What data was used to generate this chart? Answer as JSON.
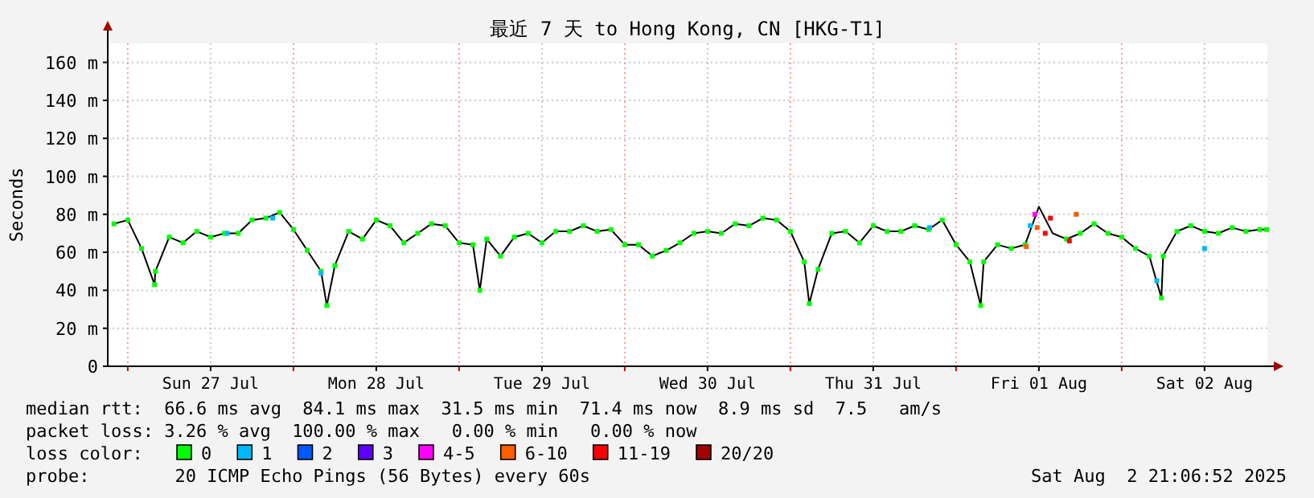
{
  "chart_data": {
    "type": "line",
    "title": "最近 7 天 to Hong Kong, CN [HKG-T1]",
    "ylabel": "Seconds",
    "xlim": [
      "2025-07-26T21:06",
      "2025-08-02T21:06"
    ],
    "xticks": [
      {
        "value": "2025-07-27T00:00",
        "label": null
      },
      {
        "value": "2025-07-27T12:00",
        "label": "Sun 27 Jul"
      },
      {
        "value": "2025-07-28T00:00",
        "label": null
      },
      {
        "value": "2025-07-28T12:00",
        "label": "Mon 28 Jul"
      },
      {
        "value": "2025-07-29T00:00",
        "label": null
      },
      {
        "value": "2025-07-29T12:00",
        "label": "Tue 29 Jul"
      },
      {
        "value": "2025-07-30T00:00",
        "label": null
      },
      {
        "value": "2025-07-30T12:00",
        "label": "Wed 30 Jul"
      },
      {
        "value": "2025-07-31T00:00",
        "label": null
      },
      {
        "value": "2025-07-31T12:00",
        "label": "Thu 31 Jul"
      },
      {
        "value": "2025-08-01T00:00",
        "label": null
      },
      {
        "value": "2025-08-01T12:00",
        "label": "Fri 01 Aug"
      },
      {
        "value": "2025-08-02T00:00",
        "label": null
      },
      {
        "value": "2025-08-02T12:00",
        "label": "Sat 02 Aug"
      }
    ],
    "ylim": [
      0,
      170
    ],
    "yticks": [
      0,
      {
        "value": 20,
        "label": "20 m"
      },
      {
        "value": 40,
        "label": "40 m"
      },
      {
        "value": 60,
        "label": "60 m"
      },
      {
        "value": 80,
        "label": "80 m"
      },
      {
        "value": 100,
        "label": "100 m"
      },
      {
        "value": 120,
        "label": "120 m"
      },
      {
        "value": 140,
        "label": "140 m"
      },
      {
        "value": 160,
        "label": "160 m"
      }
    ],
    "grid": true,
    "legend": "bottom",
    "legend_title": "loss color:",
    "x": [
      "2025-07-26T22:00",
      "2025-07-27T00:00",
      "2025-07-27T02:00",
      "2025-07-27T03:53",
      "2025-07-27T04:00",
      "2025-07-27T06:00",
      "2025-07-27T08:00",
      "2025-07-27T10:00",
      "2025-07-27T12:00",
      "2025-07-27T14:00",
      "2025-07-27T16:00",
      "2025-07-27T18:00",
      "2025-07-27T20:00",
      "2025-07-27T22:00",
      "2025-07-28T00:00",
      "2025-07-28T02:00",
      "2025-07-28T04:00",
      "2025-07-28T04:50",
      "2025-07-28T06:00",
      "2025-07-28T08:00",
      "2025-07-28T10:00",
      "2025-07-28T12:00",
      "2025-07-28T14:00",
      "2025-07-28T16:00",
      "2025-07-28T18:00",
      "2025-07-28T20:00",
      "2025-07-28T22:00",
      "2025-07-29T00:00",
      "2025-07-29T02:00",
      "2025-07-29T03:00",
      "2025-07-29T04:00",
      "2025-07-29T06:00",
      "2025-07-29T08:00",
      "2025-07-29T10:00",
      "2025-07-29T12:00",
      "2025-07-29T14:00",
      "2025-07-29T16:00",
      "2025-07-29T18:00",
      "2025-07-29T20:00",
      "2025-07-29T22:00",
      "2025-07-30T00:00",
      "2025-07-30T02:00",
      "2025-07-30T04:00",
      "2025-07-30T06:00",
      "2025-07-30T08:00",
      "2025-07-30T10:00",
      "2025-07-30T12:00",
      "2025-07-30T14:00",
      "2025-07-30T16:00",
      "2025-07-30T18:00",
      "2025-07-30T20:00",
      "2025-07-30T22:00",
      "2025-07-31T00:00",
      "2025-07-31T02:00",
      "2025-07-31T02:44",
      "2025-07-31T04:00",
      "2025-07-31T06:00",
      "2025-07-31T08:00",
      "2025-07-31T10:00",
      "2025-07-31T12:00",
      "2025-07-31T14:00",
      "2025-07-31T16:00",
      "2025-07-31T18:00",
      "2025-07-31T20:00",
      "2025-07-31T22:00",
      "2025-08-01T00:00",
      "2025-08-01T02:00",
      "2025-08-01T03:34",
      "2025-08-01T04:00",
      "2025-08-01T06:00",
      "2025-08-01T08:00",
      "2025-08-01T10:00",
      "2025-08-01T12:00",
      "2025-08-01T14:00",
      "2025-08-01T16:00",
      "2025-08-01T18:00",
      "2025-08-01T20:00",
      "2025-08-01T22:00",
      "2025-08-02T00:00",
      "2025-08-02T02:00",
      "2025-08-02T04:00",
      "2025-08-02T05:45",
      "2025-08-02T06:00",
      "2025-08-02T08:00",
      "2025-08-02T10:00",
      "2025-08-02T12:00",
      "2025-08-02T14:00",
      "2025-08-02T16:00",
      "2025-08-02T18:00",
      "2025-08-02T20:00",
      "2025-08-02T21:00"
    ],
    "series": [
      {
        "color": "#000000",
        "values": [
          75,
          77,
          62,
          43,
          50,
          68,
          65,
          71,
          68,
          70,
          70,
          77,
          78,
          81,
          72,
          61,
          50,
          32,
          53,
          71,
          67,
          77,
          74,
          65,
          70,
          75,
          74,
          65,
          64,
          40,
          67,
          58,
          68,
          70,
          65,
          71,
          71,
          74,
          71,
          72,
          64,
          64,
          58,
          61,
          65,
          70,
          71,
          70,
          75,
          74,
          78,
          77,
          71,
          55,
          33,
          51,
          70,
          71,
          65,
          74,
          71,
          71,
          74,
          72,
          77,
          64,
          55,
          32,
          55,
          64,
          62,
          64,
          84,
          70,
          67,
          70,
          75,
          70,
          68,
          62,
          58,
          36,
          58,
          71,
          74,
          71,
          70,
          73,
          71,
          72,
          72
        ]
      },
      {
        "type": "scatter",
        "name": "0",
        "color": "#00ff00",
        "values": [
          75,
          77,
          62,
          43,
          50,
          68,
          65,
          71,
          68,
          70,
          70,
          77,
          78,
          81,
          72,
          61,
          50,
          32,
          53,
          71,
          67,
          77,
          74,
          65,
          70,
          75,
          74,
          65,
          64,
          40,
          67,
          58,
          68,
          70,
          65,
          71,
          71,
          74,
          71,
          72,
          64,
          64,
          58,
          61,
          65,
          70,
          71,
          70,
          75,
          74,
          78,
          77,
          71,
          55,
          33,
          51,
          70,
          71,
          65,
          74,
          71,
          71,
          74,
          72,
          77,
          64,
          55,
          32,
          55,
          64,
          62,
          64,
          null,
          null,
          67,
          70,
          75,
          70,
          68,
          62,
          58,
          36,
          58,
          71,
          74,
          71,
          70,
          73,
          71,
          72,
          72
        ]
      },
      {
        "type": "scatter",
        "name": "1",
        "color": "#00b8ff",
        "x": [
          "2025-07-27T14:25",
          "2025-07-27T21:00",
          "2025-07-28T04:00",
          "2025-07-31T20:10",
          "2025-08-01T10:45",
          "2025-08-02T05:05",
          "2025-08-02T12:00"
        ],
        "values": [
          70,
          78,
          49,
          73,
          74,
          45,
          62
        ]
      },
      {
        "type": "scatter",
        "name": "2",
        "color": "#0059ff",
        "values": [
          null,
          null,
          null,
          null,
          null,
          null,
          null,
          null,
          null,
          null,
          null,
          null,
          null,
          null,
          null,
          null,
          null,
          null,
          null,
          null,
          null,
          null,
          null,
          null,
          null,
          null,
          null,
          null,
          null,
          null,
          null,
          null,
          null,
          null,
          null,
          null,
          null,
          null,
          null,
          null,
          null,
          null,
          null,
          null,
          null,
          null,
          null,
          null,
          null,
          null,
          null,
          null,
          null,
          null,
          null,
          null,
          null,
          null,
          null,
          null,
          null,
          null,
          null,
          null,
          null,
          null,
          null,
          null,
          null,
          null,
          null,
          null,
          null,
          null,
          null,
          null,
          null,
          null,
          null,
          null,
          null,
          null,
          null,
          null,
          null,
          null,
          null,
          null,
          null,
          null,
          null
        ]
      },
      {
        "type": "scatter",
        "name": "3",
        "color": "#5e00ff",
        "values": [
          null,
          null,
          null,
          null,
          null,
          null,
          null,
          null,
          null,
          null,
          null,
          null,
          null,
          null,
          null,
          null,
          null,
          null,
          null,
          null,
          null,
          null,
          null,
          null,
          null,
          null,
          null,
          null,
          null,
          null,
          null,
          null,
          null,
          null,
          null,
          null,
          null,
          null,
          null,
          null,
          null,
          null,
          null,
          null,
          null,
          null,
          null,
          null,
          null,
          null,
          null,
          null,
          null,
          null,
          null,
          null,
          null,
          null,
          null,
          null,
          null,
          null,
          null,
          null,
          null,
          null,
          null,
          null,
          null,
          null,
          null,
          null,
          null,
          null,
          null,
          null,
          null,
          null,
          null,
          null,
          null,
          null,
          null,
          null,
          null,
          null,
          null,
          null,
          null,
          null,
          null
        ]
      },
      {
        "type": "scatter",
        "name": "4-5",
        "color": "#ff00ff",
        "x": [
          "2025-08-01T11:25"
        ],
        "values": [
          80
        ]
      },
      {
        "type": "scatter",
        "name": "6-10",
        "color": "#ff5e00",
        "x": [
          "2025-08-01T10:10",
          "2025-08-01T11:45",
          "2025-08-01T17:25"
        ],
        "values": [
          63,
          73,
          80
        ]
      },
      {
        "type": "scatter",
        "name": "11-19",
        "color": "#ff0000",
        "x": [
          "2025-08-01T12:55",
          "2025-08-01T13:40",
          "2025-08-01T16:25"
        ],
        "values": [
          70,
          78,
          66
        ]
      },
      {
        "type": "scatter",
        "name": "20/20",
        "color": "#a10000",
        "values": [
          null,
          null,
          null,
          null,
          null,
          null,
          null,
          null,
          null,
          null,
          null,
          null,
          null,
          null,
          null,
          null,
          null,
          null,
          null,
          null,
          null,
          null,
          null,
          null,
          null,
          null,
          null,
          null,
          null,
          null,
          null,
          null,
          null,
          null,
          null,
          null,
          null,
          null,
          null,
          null,
          null,
          null,
          null,
          null,
          null,
          null,
          null,
          null,
          null,
          null,
          null,
          null,
          null,
          null,
          null,
          null,
          null,
          null,
          null,
          null,
          null,
          null,
          null,
          null,
          null,
          null,
          null,
          null,
          null,
          null,
          null,
          null,
          null,
          null,
          null,
          null,
          null,
          null,
          null,
          null,
          null,
          null,
          null,
          null,
          null,
          null,
          null,
          null,
          null,
          null,
          null
        ]
      }
    ],
    "annotations": [
      "median rtt:  66.6 ms avg  84.1 ms max  31.5 ms min  71.4 ms now  8.9 ms sd  7.5   am/s",
      "packet loss: 3.26 % avg  100.00 % max   0.00 % min   0.00 % now",
      "probe:        20 ICMP Echo Pings (56 Bytes) every 60s",
      "Sat Aug  2 21:06:52 2025"
    ]
  }
}
